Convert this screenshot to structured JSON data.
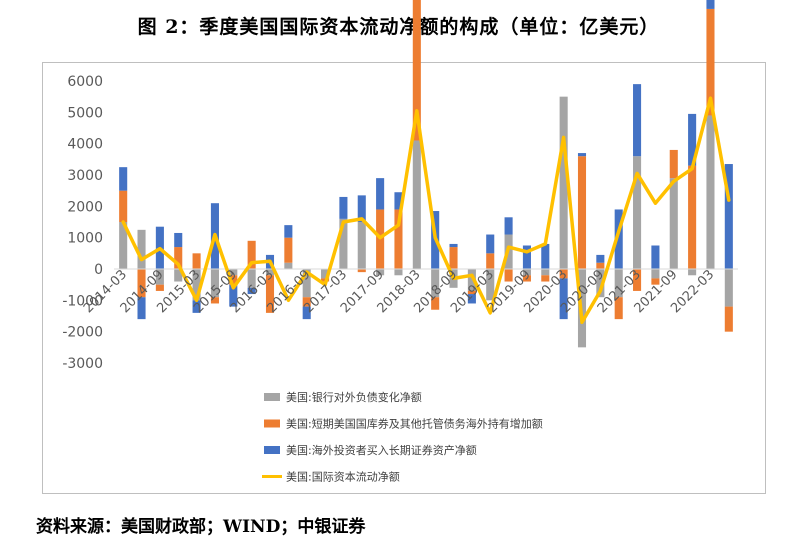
{
  "title": "图 2：季度美国国际资本流动净额的构成（单位：亿美元）",
  "source": "资料来源：美国财政部；WIND；中银证券",
  "colors": {
    "bank": "#a5a5a5",
    "short": "#ed7d31",
    "long": "#4472c4",
    "total": "#ffc000"
  },
  "chart_data": {
    "type": "bar",
    "ylim": [
      -3000,
      6000
    ],
    "yticks": [
      "6000",
      "5000",
      "4000",
      "3000",
      "2000",
      "1000",
      "0",
      "-1000",
      "-2000",
      "-3000"
    ],
    "categories": [
      "2014-03",
      "2014-06",
      "2014-09",
      "2014-12",
      "2015-03",
      "2015-06",
      "2015-09",
      "2015-12",
      "2016-03",
      "2016-06",
      "2016-09",
      "2016-12",
      "2017-03",
      "2017-06",
      "2017-09",
      "2017-12",
      "2018-03",
      "2018-06",
      "2018-09",
      "2018-12",
      "2019-03",
      "2019-06",
      "2019-09",
      "2019-12",
      "2020-03",
      "2020-06",
      "2020-09",
      "2020-12",
      "2021-03",
      "2021-06",
      "2021-09",
      "2021-12",
      "2022-03",
      "2022-06"
    ],
    "xtick_labels": [
      "2014-03",
      "2014-09",
      "2015-03",
      "2015-09",
      "2016-03",
      "2016-09",
      "2017-03",
      "2017-09",
      "2018-03",
      "2018-09",
      "2019-03",
      "2019-09",
      "2020-03",
      "2020-09",
      "2021-03",
      "2021-09",
      "2022-03"
    ],
    "series": [
      {
        "name": "美国:银行对外负债变化净额",
        "key": "bank",
        "values": [
          1500,
          1250,
          -500,
          -400,
          -1000,
          -900,
          -200,
          -600,
          -200,
          200,
          -900,
          -300,
          1600,
          1500,
          -200,
          -200,
          4100,
          -900,
          -600,
          -700,
          -1000,
          1100,
          -200,
          -200,
          5500,
          -2500,
          -900,
          -900,
          3600,
          -300,
          2900,
          -200,
          4900,
          -1200
        ]
      },
      {
        "name": "美国:短期美国国库券及其他托管债务海外持有增加额",
        "key": "short",
        "values": [
          1000,
          -900,
          -200,
          700,
          500,
          -200,
          -300,
          900,
          -1200,
          800,
          -300,
          -100,
          0,
          -100,
          1900,
          1900,
          4800,
          -400,
          700,
          -100,
          500,
          -400,
          -200,
          -200,
          -300,
          3600,
          200,
          -700,
          -700,
          -200,
          900,
          3300,
          3400,
          -800
        ]
      },
      {
        "name": "美国:海外投资者买入长期证券资产净额",
        "key": "long",
        "values": [
          750,
          -700,
          1350,
          450,
          -400,
          2100,
          -700,
          -200,
          450,
          400,
          -400,
          0,
          700,
          850,
          1000,
          550,
          1600,
          1850,
          100,
          -300,
          600,
          550,
          750,
          800,
          -1300,
          100,
          250,
          1900,
          2300,
          750,
          0,
          1650,
          2000,
          3350
        ]
      },
      {
        "name": "美国:国际资本流动净额",
        "key": "total",
        "values": [
          1500,
          300,
          650,
          150,
          -1000,
          1100,
          -600,
          200,
          250,
          -1000,
          -100,
          -500,
          1500,
          1600,
          1000,
          1400,
          5050,
          1000,
          -300,
          -200,
          -1400,
          700,
          550,
          800,
          4200,
          -1700,
          -700,
          1200,
          3050,
          2100,
          2800,
          3200,
          5450,
          2200
        ]
      }
    ]
  }
}
